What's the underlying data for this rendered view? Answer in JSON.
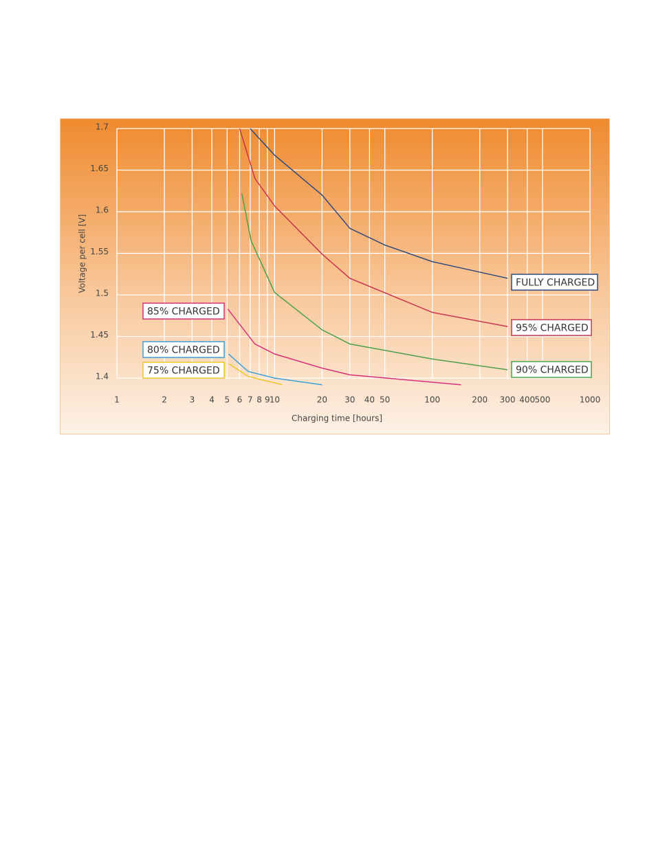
{
  "chart_data": {
    "type": "line",
    "x_label": "Charging time [hours]",
    "y_label": "Voltage per cell [V]",
    "log_x": true,
    "grid": true,
    "xlim": [
      1,
      1000
    ],
    "ylim": [
      1.4,
      1.7
    ],
    "xticks": [
      1,
      2,
      3,
      4,
      5,
      6,
      7,
      8,
      9,
      10,
      20,
      30,
      40,
      50,
      100,
      200,
      300,
      400,
      500,
      1000
    ],
    "yticks": [
      1.4,
      1.45,
      1.5,
      1.55,
      1.6,
      1.65,
      1.7
    ],
    "series": [
      {
        "name": "FULLY CHARGED",
        "color": "#2f4a7a",
        "x": [
          7,
          10,
          20,
          30,
          50,
          100,
          300
        ],
        "values": [
          1.7,
          1.668,
          1.62,
          1.58,
          1.56,
          1.54,
          1.52
        ]
      },
      {
        "name": "95% CHARGED",
        "color": "#c8344e",
        "x": [
          6,
          7.5,
          10,
          20,
          30,
          100,
          300
        ],
        "values": [
          1.7,
          1.64,
          1.607,
          1.549,
          1.52,
          1.479,
          1.462
        ]
      },
      {
        "name": "90% CHARGED",
        "color": "#4aa04a",
        "x": [
          6.2,
          7.1,
          10,
          20,
          30,
          100,
          300
        ],
        "values": [
          1.622,
          1.565,
          1.503,
          1.458,
          1.441,
          1.423,
          1.41
        ]
      },
      {
        "name": "85% CHARGED",
        "color": "#d8307a",
        "x": [
          5.05,
          7.5,
          10,
          20,
          30,
          152
        ],
        "values": [
          1.483,
          1.441,
          1.429,
          1.412,
          1.404,
          1.392
        ]
      },
      {
        "name": "80% CHARGED",
        "color": "#3a9fd8",
        "x": [
          5.1,
          6.8,
          10,
          20
        ],
        "values": [
          1.429,
          1.408,
          1.4,
          1.392
        ]
      },
      {
        "name": "75% CHARGED",
        "color": "#e8c820",
        "x": [
          5.15,
          6.8,
          11.2
        ],
        "values": [
          1.417,
          1.402,
          1.392
        ]
      }
    ]
  }
}
